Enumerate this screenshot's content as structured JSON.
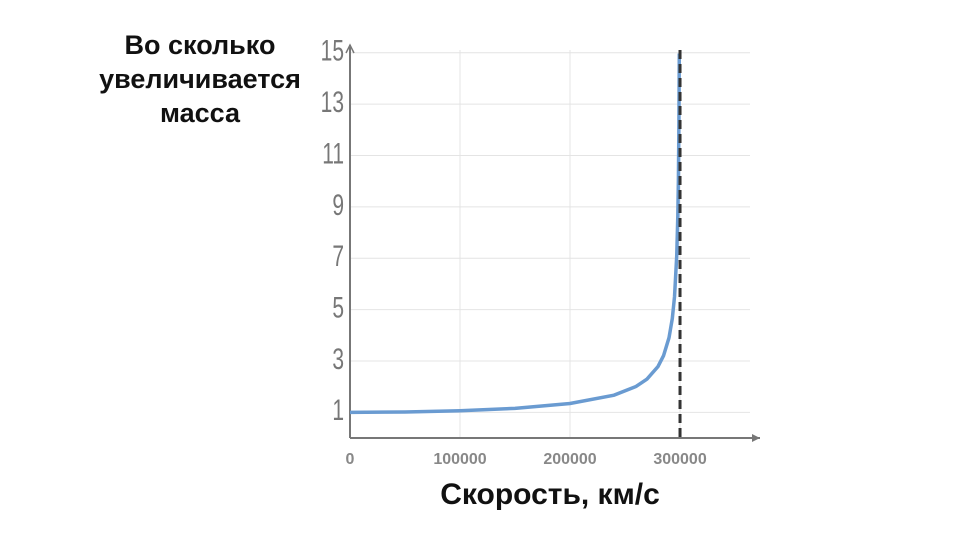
{
  "chart_data": {
    "type": "line",
    "ylabel": "Во сколько увеличивается масса",
    "xlabel": "Скорость, км/с",
    "x": [
      0,
      50000,
      100000,
      150000,
      200000,
      240000,
      260000,
      270000,
      280000,
      285000,
      290000,
      293000,
      295000,
      297000,
      298000,
      298500,
      299000,
      299330
    ],
    "series": [
      {
        "name": "Масса",
        "color": "#6a9bd1",
        "values": [
          1,
          1.014,
          1.061,
          1.155,
          1.342,
          1.667,
          2.005,
          2.294,
          2.785,
          3.203,
          3.905,
          4.656,
          5.504,
          7.089,
          8.671,
          9.99,
          12.25,
          14.97
        ]
      }
    ],
    "xlim": [
      0,
      372700
    ],
    "xticks": [
      0,
      100000,
      200000,
      300000
    ],
    "ylim": [
      0,
      15.3
    ],
    "yticks": [
      1,
      3,
      5,
      7,
      9,
      11,
      13,
      15
    ],
    "asymptote": 300000,
    "grid": true
  }
}
